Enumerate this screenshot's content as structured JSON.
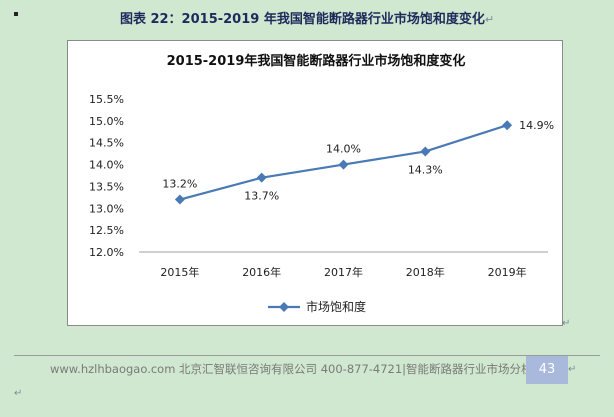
{
  "document": {
    "caption": "图表 22：2015-2019 年我国智能断路器行业市场饱和度变化",
    "paragraph_mark": "↵",
    "footer": {
      "text": "www.hzlhbaogao.com 北京汇智联恒咨询有限公司  400-877-4721|智能断路器行业市场分析",
      "page_number": "43"
    }
  },
  "chart_data": {
    "type": "line",
    "title": "2015-2019年我国智能断路器行业市场饱和度变化",
    "categories": [
      "2015年",
      "2016年",
      "2017年",
      "2018年",
      "2019年"
    ],
    "series": [
      {
        "name": "市场饱和度",
        "values": [
          13.2,
          13.7,
          14.0,
          14.3,
          14.9
        ],
        "labels": [
          "13.2%",
          "13.7%",
          "14.0%",
          "14.3%",
          "14.9%"
        ],
        "color": "#4a7ab5"
      }
    ],
    "yticks": [
      "12.0%",
      "12.5%",
      "13.0%",
      "13.5%",
      "14.0%",
      "14.5%",
      "15.0%",
      "15.5%"
    ],
    "ylim": [
      12.0,
      15.5
    ],
    "grid": false,
    "legend_position": "bottom"
  }
}
